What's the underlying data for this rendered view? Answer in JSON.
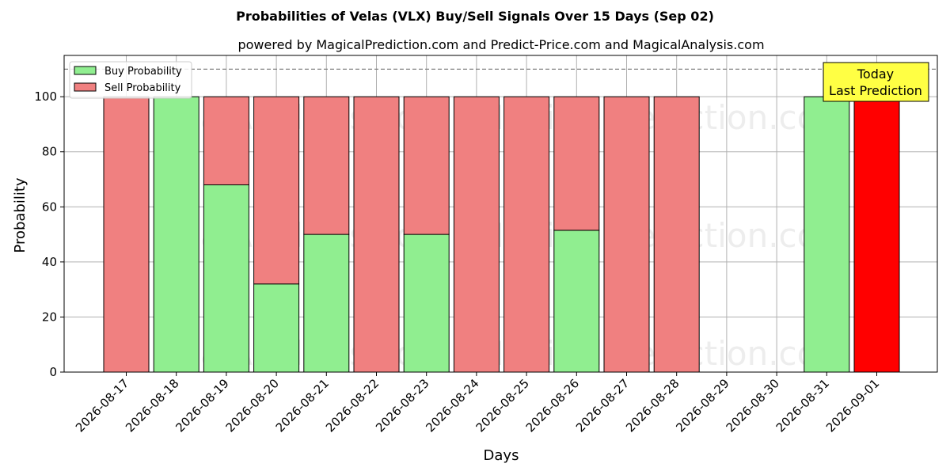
{
  "chart_data": {
    "type": "bar",
    "title": "Probabilities of Velas (VLX) Buy/Sell Signals Over 15 Days (Sep 02)",
    "subtitle": "powered by MagicalPrediction.com and Predict-Price.com and MagicalAnalysis.com",
    "xlabel": "Days",
    "ylabel": "Probability",
    "ylim": [
      0,
      115
    ],
    "yticks": [
      "0",
      "20",
      "40",
      "60",
      "80",
      "100"
    ],
    "reference_line": 110,
    "grid": true,
    "legend_position": "top-left",
    "categories": [
      "2026-08-17",
      "2026-08-18",
      "2026-08-19",
      "2026-08-20",
      "2026-08-21",
      "2026-08-22",
      "2026-08-23",
      "2026-08-24",
      "2026-08-25",
      "2026-08-26",
      "2026-08-27",
      "2026-08-28",
      "2026-08-29",
      "2026-08-30",
      "2026-08-31",
      "2026-09-01"
    ],
    "series": [
      {
        "name": "Buy Probability",
        "color": "#90ee90",
        "values": [
          0,
          100,
          68,
          32,
          50,
          0,
          50,
          0,
          0,
          51.5,
          0,
          0,
          null,
          null,
          100,
          0
        ]
      },
      {
        "name": "Sell Probability",
        "color": "#f08080",
        "values": [
          100,
          0,
          32,
          68,
          50,
          100,
          50,
          100,
          100,
          48.5,
          100,
          100,
          null,
          null,
          0,
          100
        ]
      }
    ],
    "highlight": {
      "category": "2026-09-01",
      "color": "#ff0000"
    },
    "annotation": {
      "line1": "Today",
      "line2": "Last Prediction",
      "background": "#ffff44"
    },
    "watermarks": [
      "MagicalAnalysis.com",
      "MagicalPrediction.com"
    ]
  }
}
